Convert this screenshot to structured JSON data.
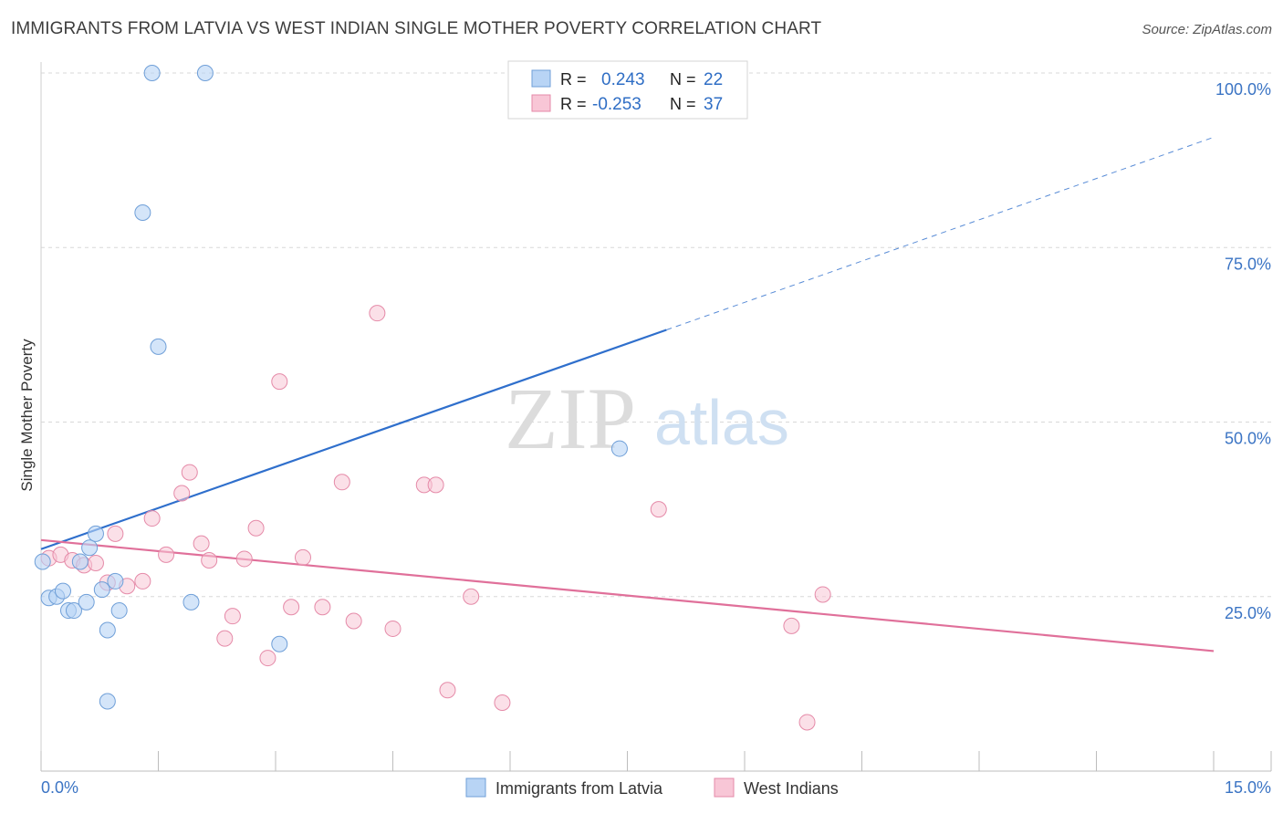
{
  "title": "IMMIGRANTS FROM LATVIA VS WEST INDIAN SINGLE MOTHER POVERTY CORRELATION CHART",
  "source": "Source: ZipAtlas.com",
  "watermark": {
    "zip": "ZIP",
    "atlas": "atlas"
  },
  "colors": {
    "blue_fill": "#b8d4f5",
    "blue_stroke": "#6f9fd8",
    "blue_line": "#2f6fcc",
    "pink_fill": "#f8c6d6",
    "pink_stroke": "#e58aa8",
    "pink_line": "#e0709a",
    "grid": "#d8d8d8",
    "tick_text": "#3b74c4"
  },
  "legend_stats": [
    {
      "r_label": "R =",
      "r_value": "0.243",
      "n_label": "N =",
      "n_value": "22"
    },
    {
      "r_label": "R =",
      "r_value": "-0.253",
      "n_label": "N =",
      "n_value": "37"
    }
  ],
  "chart_data": {
    "type": "scatter",
    "title": "IMMIGRANTS FROM LATVIA VS WEST INDIAN SINGLE MOTHER POVERTY CORRELATION CHART",
    "xlabel": "",
    "ylabel": "Single Mother Poverty",
    "xlim": [
      0,
      15
    ],
    "ylim": [
      0,
      100
    ],
    "x_tick_labels": [
      "0.0%",
      "15.0%"
    ],
    "y_ticks": [
      25,
      50,
      75,
      100
    ],
    "y_tick_labels": [
      "25.0%",
      "50.0%",
      "75.0%",
      "100.0%"
    ],
    "grid": true,
    "legend_position": "bottom",
    "series": [
      {
        "name": "Immigrants from Latvia",
        "color": "#b8d4f5",
        "points": [
          [
            0.02,
            30.0
          ],
          [
            0.1,
            24.8
          ],
          [
            0.2,
            25.0
          ],
          [
            0.28,
            25.8
          ],
          [
            0.35,
            23.0
          ],
          [
            0.42,
            23.0
          ],
          [
            0.5,
            30.0
          ],
          [
            0.58,
            24.2
          ],
          [
            0.62,
            32.0
          ],
          [
            0.7,
            34.0
          ],
          [
            0.78,
            26.0
          ],
          [
            0.85,
            20.2
          ],
          [
            0.85,
            10.0
          ],
          [
            0.95,
            27.2
          ],
          [
            1.0,
            23.0
          ],
          [
            1.3,
            80.0
          ],
          [
            1.42,
            100.0
          ],
          [
            1.5,
            60.8
          ],
          [
            1.92,
            24.2
          ],
          [
            2.1,
            100.0
          ],
          [
            3.05,
            18.2
          ],
          [
            7.4,
            46.2
          ]
        ],
        "trend": {
          "x": [
            0,
            8.0
          ],
          "y": [
            31.8,
            63.2
          ]
        },
        "trend_extension": {
          "x": [
            8.0,
            15.0
          ],
          "y": [
            63.2,
            90.8
          ]
        }
      },
      {
        "name": "West Indians",
        "color": "#f8c6d6",
        "points": [
          [
            0.1,
            30.5
          ],
          [
            0.25,
            31.0
          ],
          [
            0.4,
            30.2
          ],
          [
            0.55,
            29.5
          ],
          [
            0.7,
            29.8
          ],
          [
            0.85,
            27.0
          ],
          [
            0.95,
            34.0
          ],
          [
            1.1,
            26.5
          ],
          [
            1.3,
            27.2
          ],
          [
            1.42,
            36.2
          ],
          [
            1.6,
            31.0
          ],
          [
            1.8,
            39.8
          ],
          [
            1.9,
            42.8
          ],
          [
            2.05,
            32.6
          ],
          [
            2.15,
            30.2
          ],
          [
            2.35,
            19.0
          ],
          [
            2.45,
            22.2
          ],
          [
            2.6,
            30.4
          ],
          [
            2.75,
            34.8
          ],
          [
            2.9,
            16.2
          ],
          [
            3.05,
            55.8
          ],
          [
            3.2,
            23.5
          ],
          [
            3.35,
            30.6
          ],
          [
            3.6,
            23.5
          ],
          [
            3.85,
            41.4
          ],
          [
            4.0,
            21.5
          ],
          [
            4.3,
            65.6
          ],
          [
            4.5,
            20.4
          ],
          [
            4.9,
            41.0
          ],
          [
            5.05,
            41.0
          ],
          [
            5.2,
            11.6
          ],
          [
            5.5,
            25.0
          ],
          [
            5.9,
            9.8
          ],
          [
            7.9,
            37.5
          ],
          [
            9.6,
            20.8
          ],
          [
            9.8,
            7.0
          ],
          [
            10.0,
            25.3
          ]
        ],
        "trend": {
          "x": [
            0,
            15.0
          ],
          "y": [
            33.1,
            17.2
          ]
        }
      }
    ]
  }
}
